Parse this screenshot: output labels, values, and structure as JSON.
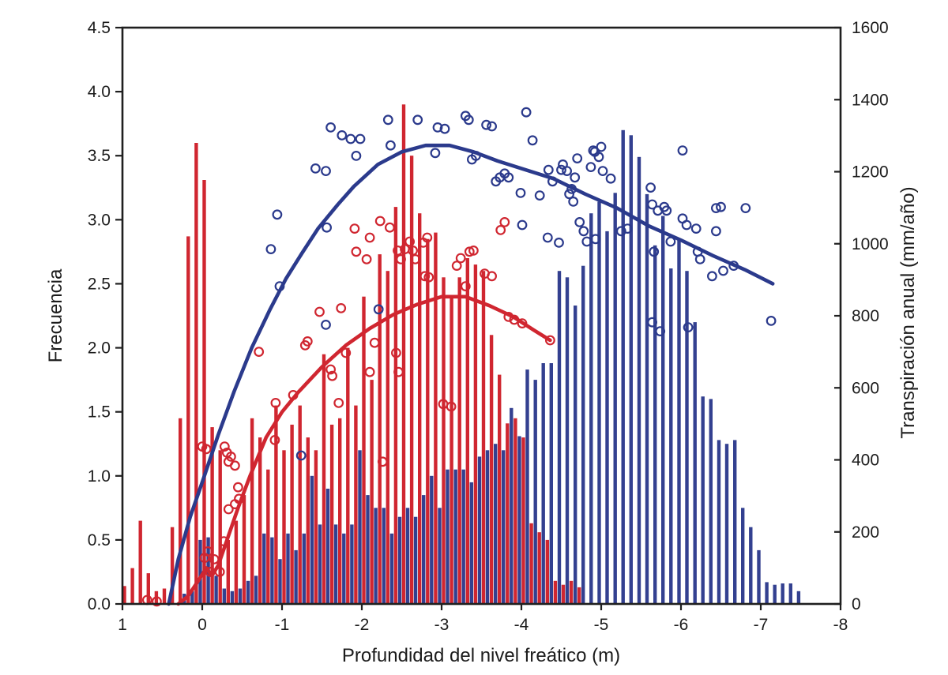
{
  "figure": {
    "background": "#ffffff",
    "axis_color": "#1f1f1f",
    "x_axis": {
      "title": "Profundidad del nivel freático (m)",
      "tick_values": [
        1,
        0,
        -1,
        -2,
        -3,
        -4,
        -5,
        -6,
        -7,
        -8
      ],
      "tick_labels": [
        "1",
        "0",
        "-1",
        "-2",
        "-3",
        "-4",
        "-5",
        "-6",
        "-7",
        "-8"
      ],
      "range": [
        1,
        -8
      ]
    },
    "y_axis_left": {
      "title": "Frecuencia",
      "tick_values": [
        0,
        0.5,
        1.0,
        1.5,
        2.0,
        2.5,
        3.0,
        3.5,
        4.0,
        4.5
      ],
      "tick_labels": [
        "0.0",
        "0.5",
        "1.0",
        "1.5",
        "2.0",
        "2.5",
        "3.0",
        "3.5",
        "4.0",
        "4.5"
      ],
      "range": [
        0,
        4.5
      ]
    },
    "y_axis_right": {
      "title": "Transpiración anual (mm/año)",
      "tick_values": [
        0,
        200,
        400,
        600,
        800,
        1000,
        1200,
        1400,
        1600
      ],
      "tick_labels": [
        "0",
        "200",
        "400",
        "600",
        "800",
        "1000",
        "1200",
        "1400",
        "1600"
      ],
      "range": [
        0,
        1600
      ]
    },
    "colors": {
      "red": "#d02630",
      "blue": "#334090",
      "blue_line": "#2b3a8c",
      "axis": "#1f1f1f"
    }
  },
  "chart_data": {
    "type": "combo",
    "bin_width": 0.1,
    "grid": false,
    "legend": "none",
    "series": [
      {
        "name": "Frecuencia (serie roja)",
        "type": "bar",
        "axis": "left",
        "color": "#d02630",
        "bins": [
          0.95,
          0.85,
          0.75,
          0.65,
          0.55,
          0.45,
          0.35,
          0.25,
          0.15,
          0.05,
          -0.05,
          -0.15,
          -0.25,
          -0.35,
          -0.45,
          -0.55,
          -0.65,
          -0.75,
          -0.85,
          -0.95,
          -1.05,
          -1.15,
          -1.25,
          -1.35,
          -1.45,
          -1.55,
          -1.65,
          -1.75,
          -1.85,
          -1.95,
          -2.05,
          -2.15,
          -2.25,
          -2.35,
          -2.45,
          -2.55,
          -2.65,
          -2.75,
          -2.85,
          -2.95,
          -3.05,
          -3.15,
          -3.25,
          -3.35,
          -3.45,
          -3.55,
          -3.65,
          -3.75,
          -3.85,
          -3.95,
          -4.05,
          -4.15,
          -4.25,
          -4.35,
          -4.45,
          -4.55,
          -4.65,
          -4.75
        ],
        "values": [
          0.14,
          0.28,
          0.65,
          0.24,
          0.1,
          0.12,
          0.6,
          1.45,
          2.87,
          3.6,
          3.31,
          1.38,
          1.2,
          0.5,
          0.65,
          0.85,
          1.45,
          1.3,
          1.05,
          1.55,
          1.2,
          1.4,
          1.55,
          1.3,
          1.2,
          1.95,
          1.4,
          1.45,
          2.0,
          1.55,
          2.4,
          1.75,
          2.73,
          2.6,
          3.1,
          3.9,
          3.5,
          3.05,
          2.85,
          2.9,
          2.55,
          2.4,
          2.55,
          2.7,
          2.65,
          2.6,
          2.1,
          1.79,
          1.41,
          1.45,
          1.3,
          0.63,
          0.56,
          0.5,
          0.18,
          0.15,
          0.18,
          0.13
        ]
      },
      {
        "name": "Frecuencia (serie azul)",
        "type": "bar",
        "axis": "left",
        "color": "#334090",
        "bins": [
          0.25,
          0.15,
          0.05,
          -0.05,
          -0.15,
          -0.25,
          -0.35,
          -0.45,
          -0.55,
          -0.65,
          -0.75,
          -0.85,
          -0.95,
          -1.05,
          -1.15,
          -1.25,
          -1.35,
          -1.45,
          -1.55,
          -1.65,
          -1.75,
          -1.85,
          -1.95,
          -2.05,
          -2.15,
          -2.25,
          -2.35,
          -2.45,
          -2.55,
          -2.65,
          -2.75,
          -2.85,
          -2.95,
          -3.05,
          -3.15,
          -3.25,
          -3.35,
          -3.45,
          -3.55,
          -3.65,
          -3.75,
          -3.85,
          -3.95,
          -4.05,
          -4.15,
          -4.25,
          -4.35,
          -4.45,
          -4.55,
          -4.65,
          -4.75,
          -4.85,
          -4.95,
          -5.05,
          -5.15,
          -5.25,
          -5.35,
          -5.45,
          -5.55,
          -5.65,
          -5.75,
          -5.85,
          -5.95,
          -6.05,
          -6.15,
          -6.25,
          -6.35,
          -6.45,
          -6.55,
          -6.65,
          -6.75,
          -6.85,
          -6.95,
          -7.05,
          -7.15,
          -7.25,
          -7.35,
          -7.45
        ],
        "values": [
          0.08,
          0.1,
          0.5,
          0.52,
          0.22,
          0.12,
          0.1,
          0.12,
          0.18,
          0.22,
          0.55,
          0.52,
          0.35,
          0.55,
          0.42,
          0.55,
          1.0,
          0.62,
          0.9,
          0.62,
          0.55,
          0.62,
          1.2,
          0.85,
          0.75,
          0.75,
          0.55,
          0.68,
          0.75,
          0.68,
          0.85,
          1.0,
          0.75,
          1.05,
          1.05,
          1.05,
          0.95,
          1.15,
          1.2,
          1.25,
          1.2,
          1.53,
          1.31,
          1.83,
          1.75,
          1.88,
          1.88,
          2.6,
          2.55,
          2.33,
          2.64,
          3.05,
          3.14,
          2.91,
          3.21,
          3.7,
          3.66,
          3.49,
          3.2,
          2.8,
          3.03,
          2.62,
          2.85,
          2.6,
          2.2,
          1.62,
          1.6,
          1.28,
          1.25,
          1.28,
          0.75,
          0.6,
          0.42,
          0.17,
          0.15,
          0.16,
          0.16,
          0.1
        ]
      },
      {
        "name": "Transpiración anual (puntos rojos)",
        "type": "scatter",
        "axis": "right",
        "color": "#d02630",
        "points": [
          [
            0.69,
            11
          ],
          [
            0.57,
            7
          ],
          [
            0.0,
            437
          ],
          [
            -0.05,
            430
          ],
          [
            -0.07,
            146
          ],
          [
            -0.03,
            128
          ],
          [
            -0.1,
            89
          ],
          [
            -0.15,
            124
          ],
          [
            -0.22,
            89
          ],
          [
            -0.27,
            174
          ],
          [
            -0.28,
            437
          ],
          [
            -0.31,
            420
          ],
          [
            -0.33,
            395
          ],
          [
            -0.33,
            263
          ],
          [
            -0.36,
            409
          ],
          [
            -0.41,
            384
          ],
          [
            -0.41,
            277
          ],
          [
            -0.45,
            324
          ],
          [
            -0.46,
            292
          ],
          [
            -0.71,
            700
          ],
          [
            -0.91,
            455
          ],
          [
            -0.92,
            558
          ],
          [
            -1.14,
            580
          ],
          [
            -1.29,
            718
          ],
          [
            -1.32,
            729
          ],
          [
            -1.47,
            811
          ],
          [
            -1.61,
            651
          ],
          [
            -1.63,
            633
          ],
          [
            -1.71,
            558
          ],
          [
            -1.74,
            821
          ],
          [
            -1.8,
            697
          ],
          [
            -1.91,
            1042
          ],
          [
            -1.93,
            978
          ],
          [
            -2.06,
            957
          ],
          [
            -2.1,
            1017
          ],
          [
            -2.1,
            644
          ],
          [
            -2.16,
            725
          ],
          [
            -2.23,
            1063
          ],
          [
            -2.26,
            395
          ],
          [
            -2.35,
            1045
          ],
          [
            -2.43,
            697
          ],
          [
            -2.45,
            981
          ],
          [
            -2.46,
            644
          ],
          [
            -2.49,
            957
          ],
          [
            -2.54,
            985
          ],
          [
            -2.6,
            1006
          ],
          [
            -2.64,
            981
          ],
          [
            -2.67,
            957
          ],
          [
            -2.77,
            1003
          ],
          [
            -2.82,
            1017
          ],
          [
            -2.79,
            910
          ],
          [
            -2.84,
            907
          ],
          [
            -3.02,
            555
          ],
          [
            -3.12,
            548
          ],
          [
            -3.19,
            939
          ],
          [
            -3.24,
            960
          ],
          [
            -3.3,
            882
          ],
          [
            -3.35,
            978
          ],
          [
            -3.4,
            981
          ],
          [
            -3.54,
            917
          ],
          [
            -3.63,
            910
          ],
          [
            -3.74,
            1038
          ],
          [
            -3.79,
            1060
          ],
          [
            -3.84,
            797
          ],
          [
            -3.91,
            789
          ],
          [
            -4.01,
            779
          ],
          [
            -4.36,
            732
          ]
        ]
      },
      {
        "name": "Transpiración anual (puntos azules)",
        "type": "scatter",
        "axis": "right",
        "color": "#2b3a8c",
        "points": [
          [
            -0.86,
            985
          ],
          [
            -0.94,
            1081
          ],
          [
            -0.97,
            882
          ],
          [
            -1.24,
            412
          ],
          [
            -1.42,
            1209
          ],
          [
            -1.55,
            1202
          ],
          [
            -1.55,
            775
          ],
          [
            -1.56,
            1045
          ],
          [
            -1.61,
            1323
          ],
          [
            -1.75,
            1301
          ],
          [
            -1.86,
            1291
          ],
          [
            -1.93,
            1244
          ],
          [
            -1.98,
            1291
          ],
          [
            -2.21,
            818
          ],
          [
            -2.33,
            1344
          ],
          [
            -2.36,
            1273
          ],
          [
            -2.7,
            1344
          ],
          [
            -2.92,
            1252
          ],
          [
            -2.95,
            1323
          ],
          [
            -3.04,
            1319
          ],
          [
            -3.3,
            1355
          ],
          [
            -3.34,
            1344
          ],
          [
            -3.38,
            1234
          ],
          [
            -3.43,
            1244
          ],
          [
            -3.56,
            1330
          ],
          [
            -3.63,
            1326
          ],
          [
            -3.68,
            1173
          ],
          [
            -3.73,
            1184
          ],
          [
            -3.79,
            1195
          ],
          [
            -3.84,
            1184
          ],
          [
            -3.99,
            1141
          ],
          [
            -4.01,
            1052
          ],
          [
            -4.06,
            1365
          ],
          [
            -4.14,
            1287
          ],
          [
            -4.23,
            1134
          ],
          [
            -4.33,
            1017
          ],
          [
            -4.34,
            1205
          ],
          [
            -4.39,
            1173
          ],
          [
            -4.47,
            1003
          ],
          [
            -4.5,
            1205
          ],
          [
            -4.52,
            1220
          ],
          [
            -4.57,
            1202
          ],
          [
            -4.6,
            1138
          ],
          [
            -4.63,
            1152
          ],
          [
            -4.65,
            1117
          ],
          [
            -4.67,
            1184
          ],
          [
            -4.7,
            1237
          ],
          [
            -4.73,
            1060
          ],
          [
            -4.78,
            1035
          ],
          [
            -4.82,
            1006
          ],
          [
            -4.87,
            1213
          ],
          [
            -4.9,
            1259
          ],
          [
            -4.92,
            1255
          ],
          [
            -4.93,
            1013
          ],
          [
            -4.97,
            1241
          ],
          [
            -5.0,
            1269
          ],
          [
            -5.02,
            1202
          ],
          [
            -5.12,
            1181
          ],
          [
            -5.25,
            1035
          ],
          [
            -5.33,
            1042
          ],
          [
            -5.62,
            1156
          ],
          [
            -5.64,
            1109
          ],
          [
            -5.64,
            782
          ],
          [
            -5.66,
            978
          ],
          [
            -5.71,
            1092
          ],
          [
            -5.74,
            757
          ],
          [
            -5.79,
            1102
          ],
          [
            -5.82,
            1092
          ],
          [
            -5.87,
            1006
          ],
          [
            -6.02,
            1259
          ],
          [
            -6.02,
            1070
          ],
          [
            -6.07,
            1052
          ],
          [
            -6.09,
            768
          ],
          [
            -6.19,
            1042
          ],
          [
            -6.21,
            978
          ],
          [
            -6.24,
            957
          ],
          [
            -6.39,
            910
          ],
          [
            -6.44,
            1099
          ],
          [
            -6.44,
            1035
          ],
          [
            -6.5,
            1102
          ],
          [
            -6.53,
            925
          ],
          [
            -6.66,
            939
          ],
          [
            -6.81,
            1099
          ],
          [
            -7.13,
            786
          ]
        ]
      },
      {
        "name": "Curva ajustada (roja)",
        "type": "line",
        "axis": "right",
        "color": "#d02630",
        "points": [
          [
            0.3,
            0
          ],
          [
            0.18,
            21
          ],
          [
            0.05,
            64
          ],
          [
            -0.05,
            100
          ],
          [
            -0.12,
            78
          ],
          [
            -0.2,
            107
          ],
          [
            -0.3,
            171
          ],
          [
            -0.45,
            267
          ],
          [
            -0.6,
            356
          ],
          [
            -0.8,
            462
          ],
          [
            -1.0,
            533
          ],
          [
            -1.2,
            587
          ],
          [
            -1.5,
            658
          ],
          [
            -1.8,
            718
          ],
          [
            -2.1,
            765
          ],
          [
            -2.4,
            804
          ],
          [
            -2.7,
            832
          ],
          [
            -3.0,
            853
          ],
          [
            -3.3,
            853
          ],
          [
            -3.6,
            828
          ],
          [
            -3.9,
            797
          ],
          [
            -4.15,
            761
          ],
          [
            -4.36,
            732
          ]
        ]
      },
      {
        "name": "Curva ajustada (azul)",
        "type": "line",
        "axis": "right",
        "color": "#2b3a8c",
        "points": [
          [
            0.42,
            0
          ],
          [
            0.3,
            124
          ],
          [
            0.15,
            242
          ],
          [
            0.0,
            338
          ],
          [
            -0.2,
            469
          ],
          [
            -0.4,
            590
          ],
          [
            -0.62,
            711
          ],
          [
            -0.85,
            818
          ],
          [
            -1.05,
            903
          ],
          [
            -1.25,
            974
          ],
          [
            -1.45,
            1042
          ],
          [
            -1.7,
            1109
          ],
          [
            -1.9,
            1159
          ],
          [
            -2.2,
            1220
          ],
          [
            -2.5,
            1255
          ],
          [
            -2.8,
            1273
          ],
          [
            -3.1,
            1273
          ],
          [
            -3.4,
            1255
          ],
          [
            -3.7,
            1230
          ],
          [
            -4.0,
            1209
          ],
          [
            -4.4,
            1181
          ],
          [
            -4.8,
            1138
          ],
          [
            -5.2,
            1099
          ],
          [
            -5.6,
            1049
          ],
          [
            -6.0,
            1010
          ],
          [
            -6.4,
            967
          ],
          [
            -6.8,
            928
          ],
          [
            -7.15,
            889
          ]
        ]
      }
    ]
  }
}
